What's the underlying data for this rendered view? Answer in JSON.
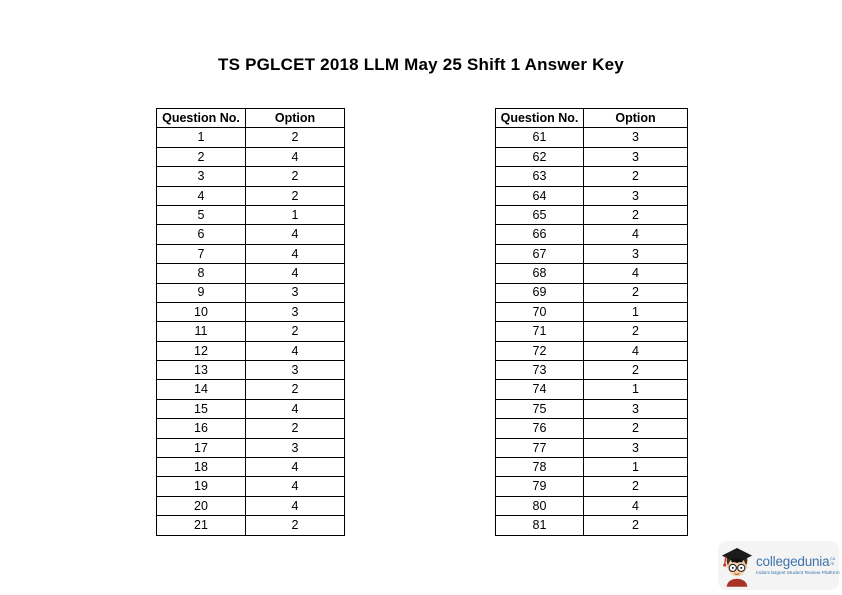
{
  "page": {
    "title": "TS PGLCET 2018 LLM May 25 Shift 1 Answer Key"
  },
  "tables": {
    "headers": [
      "Question No.",
      "Option"
    ],
    "left": {
      "rows": [
        [
          "1",
          "2"
        ],
        [
          "2",
          "4"
        ],
        [
          "3",
          "2"
        ],
        [
          "4",
          "2"
        ],
        [
          "5",
          "1"
        ],
        [
          "6",
          "4"
        ],
        [
          "7",
          "4"
        ],
        [
          "8",
          "4"
        ],
        [
          "9",
          "3"
        ],
        [
          "10",
          "3"
        ],
        [
          "11",
          "2"
        ],
        [
          "12",
          "4"
        ],
        [
          "13",
          "3"
        ],
        [
          "14",
          "2"
        ],
        [
          "15",
          "4"
        ],
        [
          "16",
          "2"
        ],
        [
          "17",
          "3"
        ],
        [
          "18",
          "4"
        ],
        [
          "19",
          "4"
        ],
        [
          "20",
          "4"
        ],
        [
          "21",
          "2"
        ]
      ]
    },
    "right": {
      "rows": [
        [
          "61",
          "3"
        ],
        [
          "62",
          "3"
        ],
        [
          "63",
          "2"
        ],
        [
          "64",
          "3"
        ],
        [
          "65",
          "2"
        ],
        [
          "66",
          "4"
        ],
        [
          "67",
          "3"
        ],
        [
          "68",
          "4"
        ],
        [
          "69",
          "2"
        ],
        [
          "70",
          "1"
        ],
        [
          "71",
          "2"
        ],
        [
          "72",
          "4"
        ],
        [
          "73",
          "2"
        ],
        [
          "74",
          "1"
        ],
        [
          "75",
          "3"
        ],
        [
          "76",
          "2"
        ],
        [
          "77",
          "3"
        ],
        [
          "78",
          "1"
        ],
        [
          "79",
          "2"
        ],
        [
          "80",
          "4"
        ],
        [
          "81",
          "2"
        ]
      ]
    }
  },
  "logo": {
    "brand": "collegedunia",
    "tld": "com",
    "tagline": "India's largest Student Review Platform",
    "brand_color": "#3c74ab",
    "card_bg": "#f4f4f5"
  }
}
